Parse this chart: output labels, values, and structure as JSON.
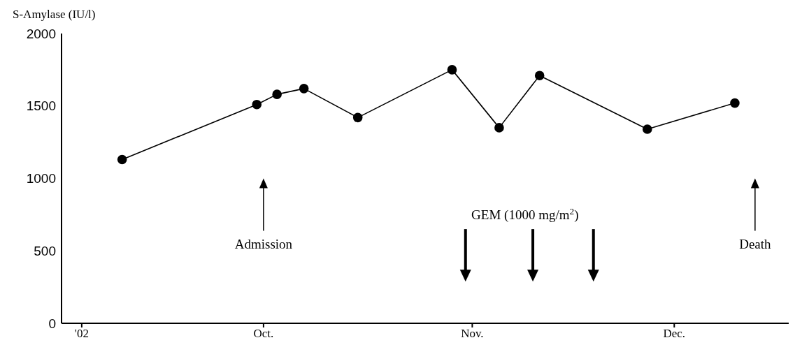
{
  "chart_data": {
    "type": "line",
    "ylabel": "S-Amylase (IU/l)",
    "x": [
      "2002-09-10",
      "2002-09-30",
      "2002-10-03",
      "2002-10-07",
      "2002-10-15",
      "2002-10-29",
      "2002-11-05",
      "2002-11-11",
      "2002-11-27",
      "2002-12-10"
    ],
    "series": [
      {
        "color": "#000000",
        "values": [
          1130,
          1510,
          1580,
          1620,
          1420,
          1750,
          1350,
          1710,
          1340,
          1520
        ]
      }
    ],
    "xlim": [
      "2002-09-01",
      "2002-12-18"
    ],
    "xticks": [
      {
        "value": "2002-09-04",
        "label": "'02"
      },
      {
        "value": "2002-10-01",
        "label": "Oct."
      },
      {
        "value": "2002-11-01",
        "label": "Nov."
      },
      {
        "value": "2002-12-01",
        "label": "Dec."
      }
    ],
    "ylim": [
      0,
      2000
    ],
    "yticks": [
      0,
      500,
      1000,
      1500,
      2000
    ],
    "marker": "circle",
    "line_style": "solid",
    "grid": false,
    "legend": false,
    "ref_lines": [
      {
        "axis": "x",
        "value": "2002-10-01",
        "label": "Admission",
        "line_style": "solid"
      },
      {
        "axis": "x",
        "value": "2002-10-31",
        "label": "GEM (1000 mg/m$^{2}$)"
      },
      {
        "axis": "x",
        "value": "2002-11-10"
      },
      {
        "axis": "x",
        "value": "2002-11-19"
      },
      {
        "axis": "x",
        "value": "2002-12-13",
        "label": "Death",
        "line_style": "solid"
      }
    ]
  }
}
